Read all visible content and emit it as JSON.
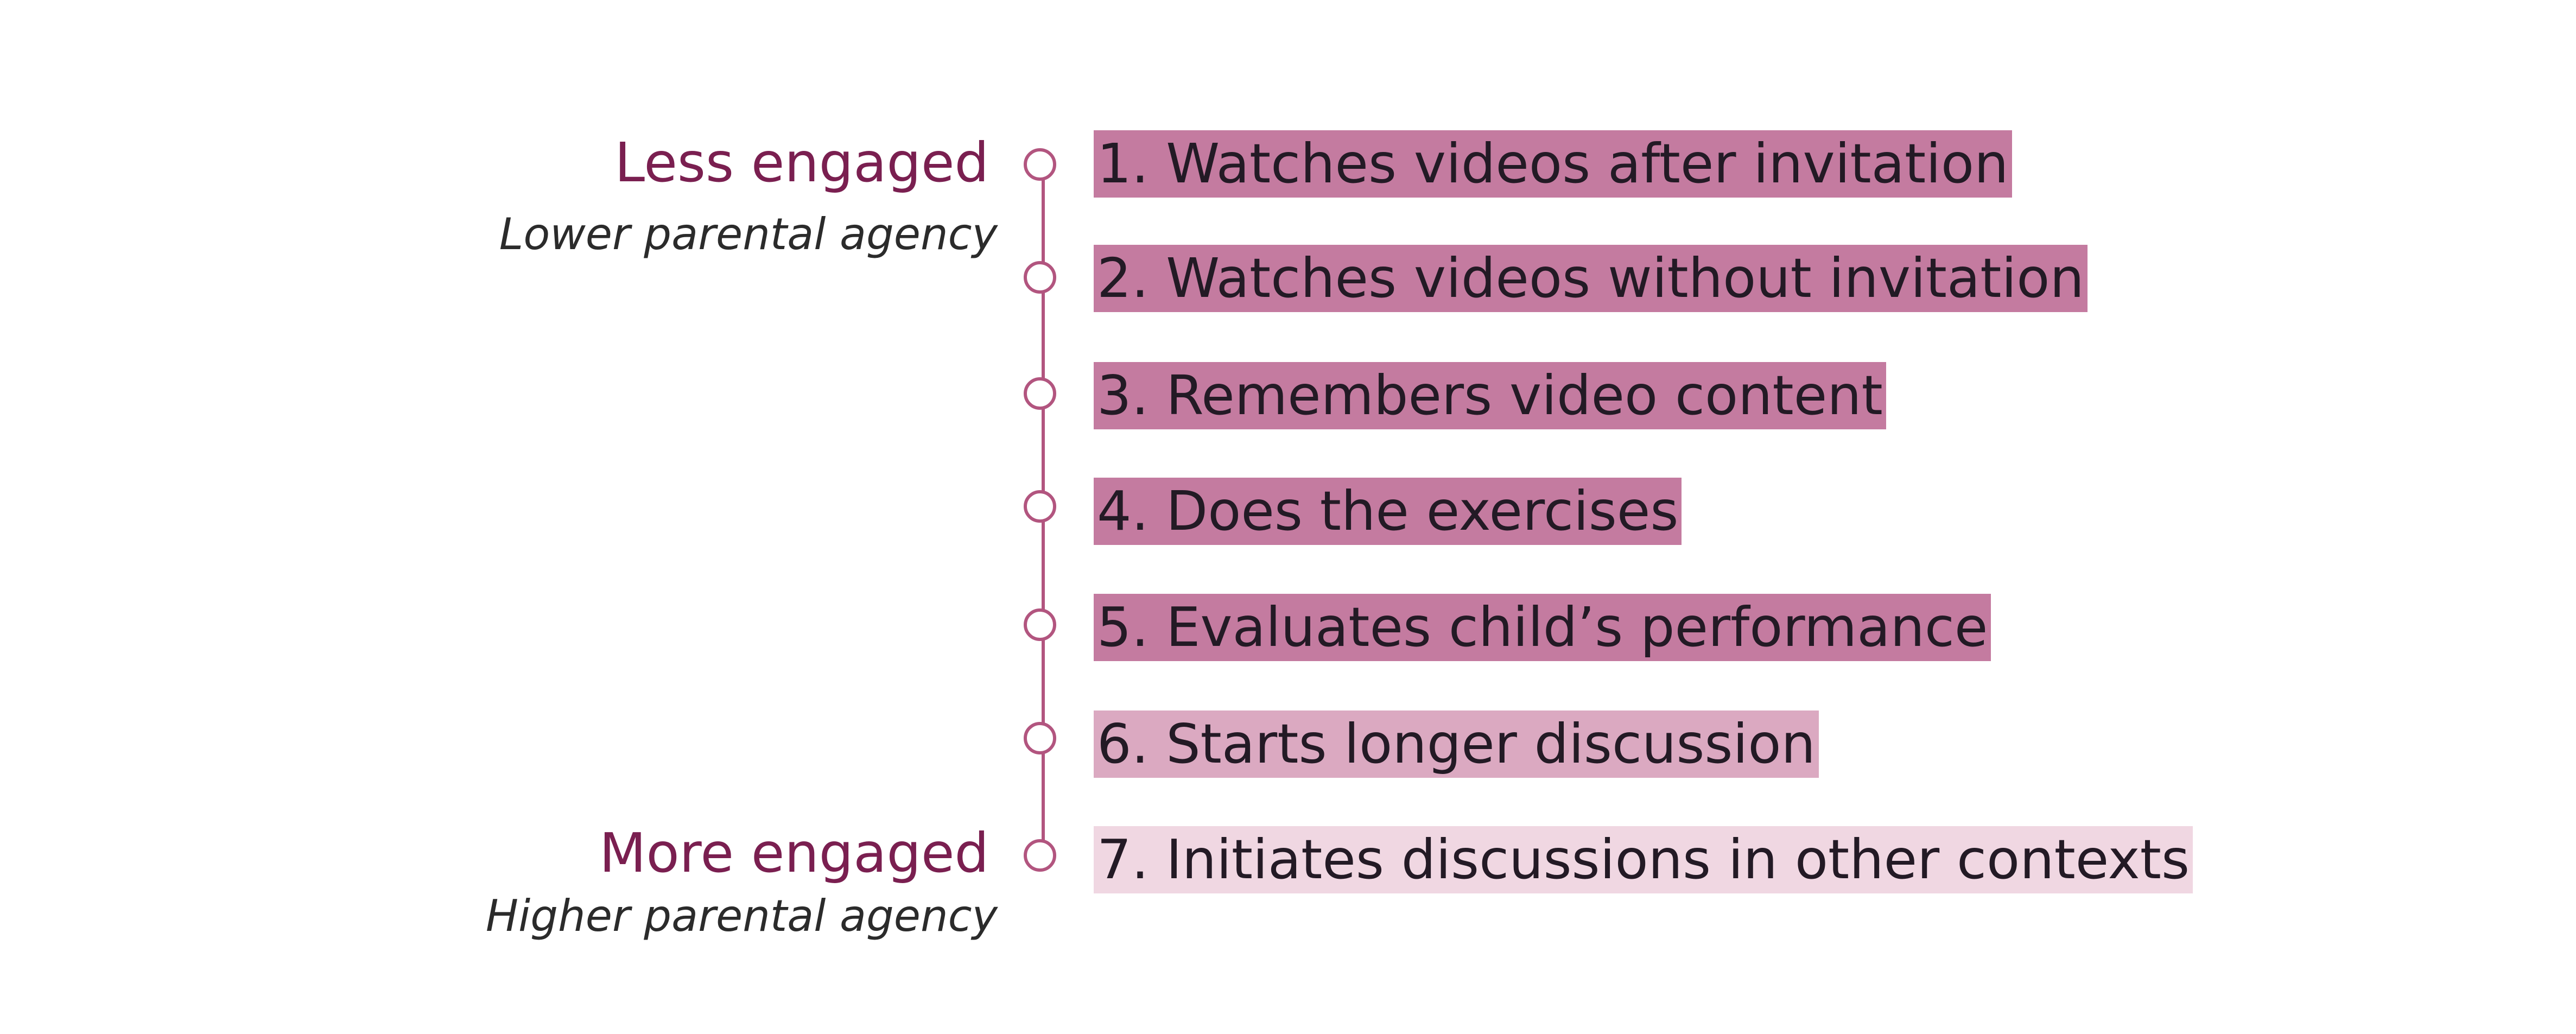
{
  "scale": {
    "top_label": "Less engaged",
    "top_sublabel": "Lower parental agency",
    "bottom_label": "More engaged",
    "bottom_sublabel": "Higher parental agency"
  },
  "steps": [
    {
      "text": "1. Watches videos after invitation",
      "shade": "#c47ba0"
    },
    {
      "text": "2. Watches videos without invitation",
      "shade": "#c47ba0"
    },
    {
      "text": "3. Remembers video content",
      "shade": "#c47ba0"
    },
    {
      "text": "4. Does the exercises",
      "shade": "#c47ba0"
    },
    {
      "text": "5. Evaluates child’s performance",
      "shade": "#c47ba0"
    },
    {
      "text": "6. Starts longer discussion",
      "shade": "#dba9c1"
    },
    {
      "text": "7. Initiates discussions in other contexts",
      "shade": "#f0d7e2"
    }
  ],
  "colors": {
    "accent": "#7a1f50",
    "timeline": "#b2557f"
  }
}
